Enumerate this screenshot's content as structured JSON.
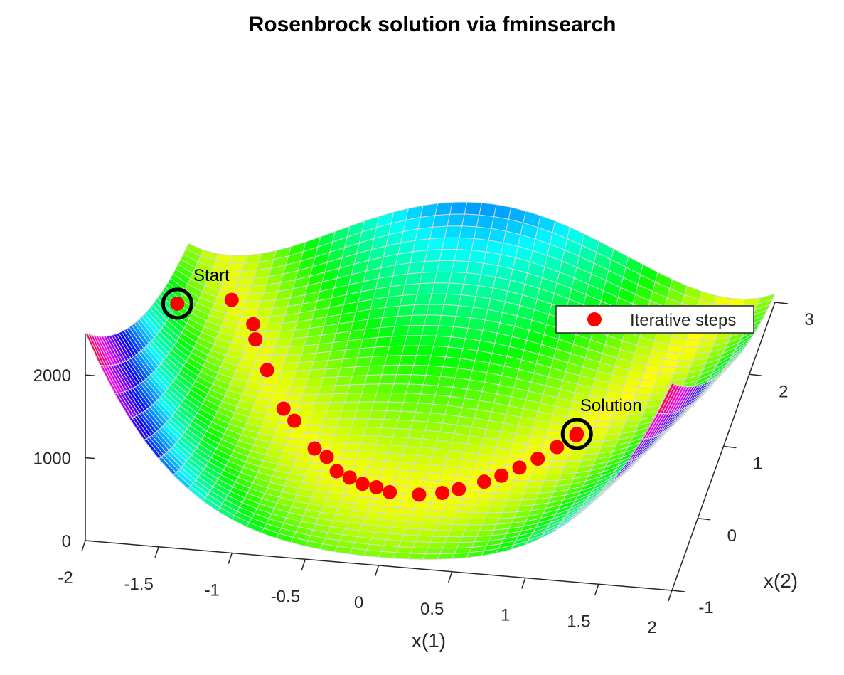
{
  "chart_data": {
    "type": "surface3d",
    "title": "Rosenbrock solution via fminsearch",
    "xlabel": "x(1)",
    "ylabel": "x(2)",
    "xlim": [
      -2,
      2
    ],
    "ylim": [
      -1,
      3
    ],
    "zlim": [
      0,
      2500
    ],
    "xticks": [
      -2,
      -1.5,
      -1,
      -0.5,
      0,
      0.5,
      1,
      1.5,
      2
    ],
    "yticks": [
      -1,
      0,
      1,
      2,
      3
    ],
    "zticks": [
      0,
      1000,
      2000
    ],
    "series": [
      {
        "name": "Iterative steps",
        "color": "#ff0000",
        "x": [
          -1.9,
          -1.6,
          -1.4,
          -1.35,
          -1.2,
          -1.0,
          -0.9,
          -0.7,
          -0.6,
          -0.5,
          -0.4,
          -0.3,
          -0.2,
          -0.1,
          0.1,
          0.25,
          0.35,
          0.5,
          0.6,
          0.7,
          0.8,
          0.9,
          1.0,
          1.0
        ],
        "y": [
          2.0,
          2.4,
          2.1,
          1.9,
          1.5,
          1.0,
          0.85,
          0.5,
          0.4,
          0.22,
          0.15,
          0.08,
          0.05,
          0.0,
          0.0,
          0.05,
          0.12,
          0.25,
          0.35,
          0.48,
          0.62,
          0.8,
          0.98,
          1.0
        ],
        "z": [
          267.6,
          9.3,
          7.7,
          6.1,
          5.2,
          4.0,
          3.8,
          2.9,
          2.7,
          2.3,
          2.0,
          1.7,
          1.5,
          1.2,
          0.8,
          0.6,
          0.4,
          0.25,
          0.2,
          0.1,
          0.1,
          0.0,
          0.0,
          0.0
        ]
      }
    ],
    "annotations": [
      {
        "text": "Start",
        "x": -1.9,
        "y": 2.0,
        "z": 267.6
      },
      {
        "text": "Solution",
        "x": 1.0,
        "y": 1.0,
        "z": 0.0
      }
    ]
  }
}
